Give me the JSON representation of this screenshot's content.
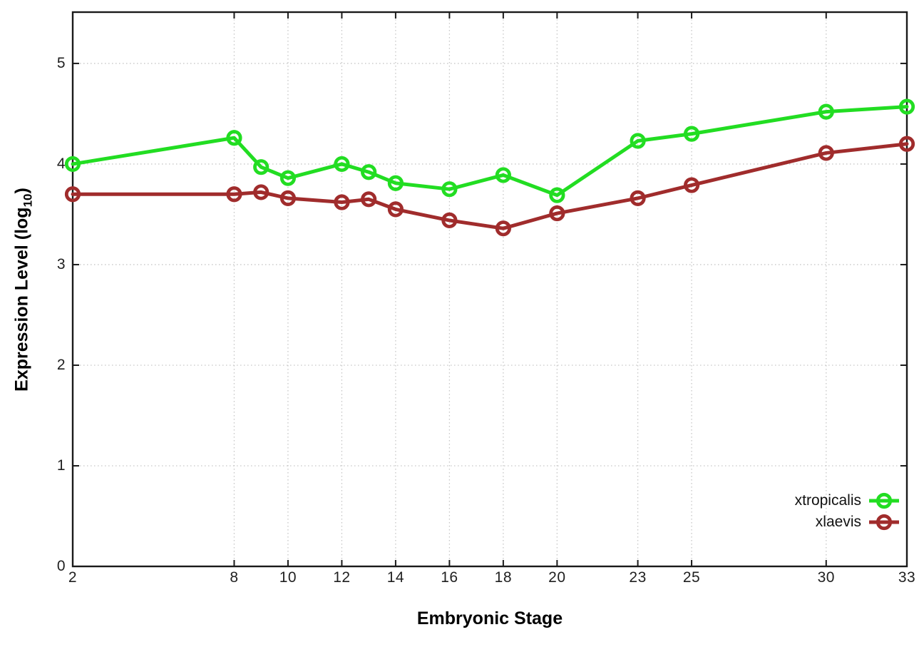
{
  "figure": {
    "background": "#ffffff",
    "border_color": "#1a1a1a",
    "grid_color": "#c6c6c6",
    "x_axis_title": "Embryonic Stage",
    "y_axis_title_main": "Expression Level (log",
    "y_axis_title_sub": "10",
    "y_axis_title_close": ")"
  },
  "chart_data": {
    "type": "line",
    "title": "",
    "xlabel": "Embryonic Stage",
    "ylabel": "Expression Level (log10)",
    "x": [
      2,
      8,
      9,
      10,
      12,
      13,
      14,
      16,
      18,
      20,
      23,
      25,
      30,
      33
    ],
    "x_ticks": [
      2,
      8,
      10,
      12,
      14,
      16,
      18,
      20,
      23,
      25,
      30,
      33
    ],
    "y_ticks": [
      0,
      1,
      2,
      3,
      4,
      5
    ],
    "xlim": [
      2,
      33
    ],
    "ylim": [
      0,
      5.51
    ],
    "grid": true,
    "grid_style": "dotted",
    "legend_position": "inside-right-lower",
    "series": [
      {
        "name": "xtropicalis",
        "color": "#22dd22",
        "marker": "open-circle",
        "values": [
          4.0,
          4.26,
          3.97,
          3.86,
          4.0,
          3.92,
          3.81,
          3.75,
          3.89,
          3.69,
          4.23,
          4.3,
          4.52,
          4.57
        ]
      },
      {
        "name": "xlaevis",
        "color": "#a02c2c",
        "marker": "open-circle",
        "values": [
          3.7,
          3.7,
          3.72,
          3.66,
          3.62,
          3.65,
          3.55,
          3.44,
          3.36,
          3.51,
          3.66,
          3.79,
          4.11,
          4.2
        ]
      }
    ]
  }
}
